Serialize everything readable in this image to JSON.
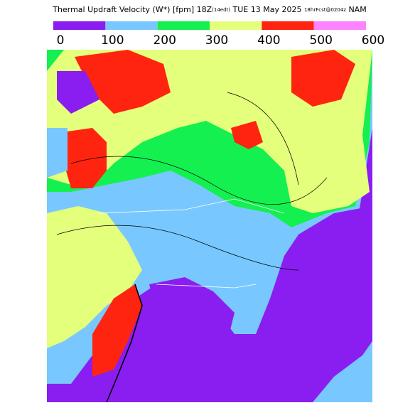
{
  "header": {
    "title_parts": [
      "Thermal Updraft Velocity (W*) [fpm] 18Z",
      "(14edt)",
      " TUE 13 May 2025 ",
      "18hrFcst@0204z",
      " NAM"
    ]
  },
  "legend": {
    "ticks": [
      0,
      100,
      200,
      300,
      400,
      500,
      600
    ],
    "colors": [
      "#8a1ef0",
      "#78c8ff",
      "#14f050",
      "#e4ff7c",
      "#ff2410",
      "#ff82ff"
    ]
  }
}
